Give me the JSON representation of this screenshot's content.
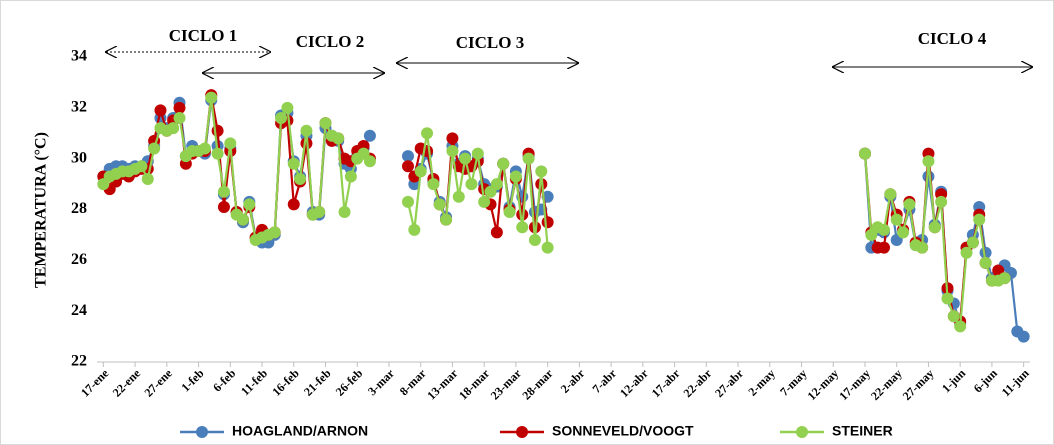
{
  "chart_data": {
    "type": "line",
    "y_label": "TEMPERATURA (°C)",
    "annotations": [
      "CICLO 1",
      "CICLO 2",
      "CICLO 3",
      "CICLO 4"
    ],
    "x": [
      17,
      18,
      19,
      20,
      21,
      22,
      23,
      24,
      25,
      26,
      27,
      28,
      29,
      30,
      31,
      32,
      33,
      34,
      35,
      36,
      37,
      38,
      39,
      40,
      41,
      42,
      43,
      44,
      45,
      46,
      47,
      48,
      49,
      50,
      51,
      52,
      53,
      54,
      55,
      56,
      57,
      58,
      59,
      62,
      65,
      66,
      67,
      68,
      69,
      70,
      71,
      72,
      73,
      74,
      75,
      76,
      77,
      78,
      79,
      80,
      81,
      82,
      83,
      84,
      85,
      86,
      87,
      110,
      137,
      138,
      139,
      140,
      141,
      142,
      143,
      144,
      145,
      146,
      147,
      148,
      149,
      150,
      151,
      152,
      153,
      154,
      155,
      156,
      157,
      158,
      159,
      160,
      161,
      162
    ],
    "xlim": [
      16,
      163
    ],
    "xticks": [
      {
        "value": 17,
        "label": "17-ene"
      },
      {
        "value": 22,
        "label": "22-ene"
      },
      {
        "value": 27,
        "label": "27-ene"
      },
      {
        "value": 32,
        "label": "1-feb"
      },
      {
        "value": 37,
        "label": "6-feb"
      },
      {
        "value": 42,
        "label": "11-feb"
      },
      {
        "value": 47,
        "label": "16-feb"
      },
      {
        "value": 52,
        "label": "21-feb"
      },
      {
        "value": 57,
        "label": "26-feb"
      },
      {
        "value": 62,
        "label": "3-mar"
      },
      {
        "value": 67,
        "label": "8-mar"
      },
      {
        "value": 72,
        "label": "13-mar"
      },
      {
        "value": 77,
        "label": "18-mar"
      },
      {
        "value": 82,
        "label": "23-mar"
      },
      {
        "value": 87,
        "label": "28-mar"
      },
      {
        "value": 92,
        "label": "2-abr"
      },
      {
        "value": 97,
        "label": "7-abr"
      },
      {
        "value": 102,
        "label": "12-abr"
      },
      {
        "value": 107,
        "label": "17-abr"
      },
      {
        "value": 112,
        "label": "22-abr"
      },
      {
        "value": 117,
        "label": "27-abr"
      },
      {
        "value": 122,
        "label": "2-may"
      },
      {
        "value": 127,
        "label": "7-may"
      },
      {
        "value": 132,
        "label": "12-may"
      },
      {
        "value": 137,
        "label": "17-may"
      },
      {
        "value": 142,
        "label": "22-may"
      },
      {
        "value": 147,
        "label": "27-may"
      },
      {
        "value": 152,
        "label": "1-jun"
      },
      {
        "value": 157,
        "label": "6-jun"
      },
      {
        "value": 162,
        "label": "11-jun"
      }
    ],
    "ylim": [
      22,
      34
    ],
    "yticks": [
      22,
      24,
      26,
      28,
      30,
      32,
      34
    ],
    "grid": false,
    "legend": "bottom",
    "series": [
      {
        "name": "HOAGLAND/ARNON",
        "color": "#4a7ebb",
        "values": [
          29.3,
          29.6,
          29.7,
          29.7,
          29.6,
          29.7,
          29.7,
          29.9,
          30.5,
          31.6,
          31.2,
          31.6,
          32.2,
          30.1,
          30.5,
          30.3,
          30.2,
          32.3,
          30.5,
          28.6,
          30.4,
          27.9,
          27.5,
          28.3,
          26.9,
          26.7,
          26.7,
          27.0,
          31.7,
          31.8,
          29.9,
          29.3,
          30.9,
          27.9,
          27.8,
          31.2,
          30.9,
          30.7,
          29.8,
          29.6,
          30.1,
          30.4,
          30.9,
          null,
          30.1,
          29.0,
          29.6,
          30.2,
          29.1,
          28.3,
          27.7,
          30.5,
          29.8,
          30.1,
          29.7,
          30.0,
          29.0,
          28.8,
          28.9,
          29.8,
          28.1,
          29.5,
          28.5,
          30.1,
          27.9,
          28.0,
          28.5,
          null,
          30.2,
          26.5,
          27.2,
          27.1,
          28.5,
          26.8,
          27.2,
          28.0,
          26.6,
          26.8,
          29.3,
          27.4,
          28.7,
          24.8,
          24.3,
          23.5,
          26.5,
          27.0,
          28.1,
          26.3,
          25.3,
          25.5,
          25.8,
          25.5,
          23.2,
          23.0
        ]
      },
      {
        "name": "SONNEVELD/VOOGT",
        "color": "#c00000",
        "values": [
          29.3,
          28.8,
          29.1,
          29.4,
          29.3,
          29.5,
          29.6,
          29.6,
          30.7,
          31.9,
          31.1,
          31.5,
          32.0,
          29.8,
          30.2,
          30.3,
          30.3,
          32.5,
          31.1,
          28.1,
          30.3,
          27.9,
          27.6,
          28.1,
          26.9,
          27.2,
          27.0,
          27.1,
          31.4,
          31.5,
          28.2,
          29.1,
          30.6,
          27.8,
          27.9,
          31.4,
          30.7,
          30.8,
          30.0,
          29.9,
          30.3,
          30.5,
          30.0,
          null,
          29.7,
          29.3,
          30.4,
          30.3,
          29.2,
          28.2,
          27.6,
          30.8,
          29.7,
          29.6,
          29.7,
          29.9,
          28.8,
          28.2,
          27.1,
          29.8,
          28.0,
          29.2,
          27.8,
          30.2,
          27.3,
          29.0,
          27.5,
          null,
          30.2,
          27.1,
          26.5,
          26.5,
          28.6,
          27.8,
          27.2,
          28.3,
          26.7,
          26.5,
          30.2,
          27.3,
          28.6,
          24.9,
          23.8,
          23.6,
          26.5,
          26.7,
          27.8,
          25.9,
          25.2,
          25.6,
          25.3,
          null,
          null,
          null
        ]
      },
      {
        "name": "STEINER",
        "color": "#92d050",
        "values": [
          29.0,
          29.3,
          29.4,
          29.5,
          29.5,
          29.6,
          29.7,
          29.2,
          30.4,
          31.2,
          31.1,
          31.2,
          31.6,
          30.1,
          30.3,
          30.3,
          30.4,
          32.4,
          30.2,
          28.7,
          30.6,
          27.8,
          27.6,
          28.2,
          26.8,
          26.9,
          27.0,
          27.1,
          31.6,
          32.0,
          29.8,
          29.2,
          31.1,
          27.8,
          27.9,
          31.4,
          30.9,
          30.8,
          27.9,
          29.3,
          30.0,
          30.2,
          29.9,
          null,
          28.3,
          27.2,
          29.5,
          31.0,
          29.0,
          28.2,
          27.6,
          30.3,
          28.5,
          30.0,
          29.0,
          30.2,
          28.3,
          28.7,
          29.0,
          29.8,
          27.9,
          29.3,
          27.3,
          30.0,
          26.8,
          29.5,
          26.5,
          null,
          30.2,
          27.0,
          27.3,
          27.2,
          28.6,
          27.6,
          27.1,
          28.2,
          26.6,
          26.5,
          29.9,
          27.3,
          28.3,
          24.5,
          23.8,
          23.4,
          26.3,
          26.7,
          27.6,
          25.9,
          25.2,
          25.2,
          25.3,
          null,
          null,
          null
        ]
      }
    ]
  }
}
